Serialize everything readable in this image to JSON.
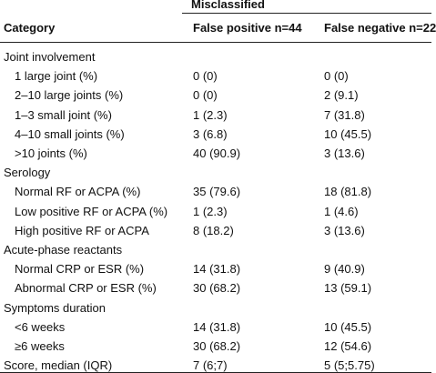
{
  "table": {
    "group_header": "Misclassified",
    "col_category": "Category",
    "col_fp": "False positive n=44",
    "col_fn": "False negative n=22",
    "rows": [
      {
        "label": "Joint involvement",
        "fp": "",
        "fn": "",
        "section": true
      },
      {
        "label": "1 large joint (%)",
        "fp": "0 (0)",
        "fn": "0 (0)",
        "section": false
      },
      {
        "label": "2–10 large joints (%)",
        "fp": "0 (0)",
        "fn": "2 (9.1)",
        "section": false
      },
      {
        "label": "1–3 small joint (%)",
        "fp": "1 (2.3)",
        "fn": "7 (31.8)",
        "section": false
      },
      {
        "label": "4–10 small joints (%)",
        "fp": "3 (6.8)",
        "fn": "10 (45.5)",
        "section": false
      },
      {
        "label": ">10 joints (%)",
        "fp": "40 (90.9)",
        "fn": "3 (13.6)",
        "section": false
      },
      {
        "label": "Serology",
        "fp": "",
        "fn": "",
        "section": true
      },
      {
        "label": "Normal RF or ACPA (%)",
        "fp": "35 (79.6)",
        "fn": "18 (81.8)",
        "section": false
      },
      {
        "label": "Low positive RF or ACPA (%)",
        "fp": "1 (2.3)",
        "fn": "1 (4.6)",
        "section": false
      },
      {
        "label": "High positive RF or ACPA",
        "fp": "8 (18.2)",
        "fn": "3 (13.6)",
        "section": false
      },
      {
        "label": "Acute-phase reactants",
        "fp": "",
        "fn": "",
        "section": true
      },
      {
        "label": "Normal CRP or ESR (%)",
        "fp": "14 (31.8)",
        "fn": "9 (40.9)",
        "section": false
      },
      {
        "label": "Abnormal CRP or ESR (%)",
        "fp": "30 (68.2)",
        "fn": "13 (59.1)",
        "section": false
      },
      {
        "label": "Symptoms duration",
        "fp": "",
        "fn": "",
        "section": true
      },
      {
        "label": "<6 weeks",
        "fp": "14 (31.8)",
        "fn": "10 (45.5)",
        "section": false
      },
      {
        "label": "≥6 weeks",
        "fp": "30 (68.2)",
        "fn": "12 (54.6)",
        "section": false
      },
      {
        "label": "Score, median (IQR)",
        "fp": "7 (6;7)",
        "fn": "5 (5;5.75)",
        "section": true
      }
    ]
  }
}
